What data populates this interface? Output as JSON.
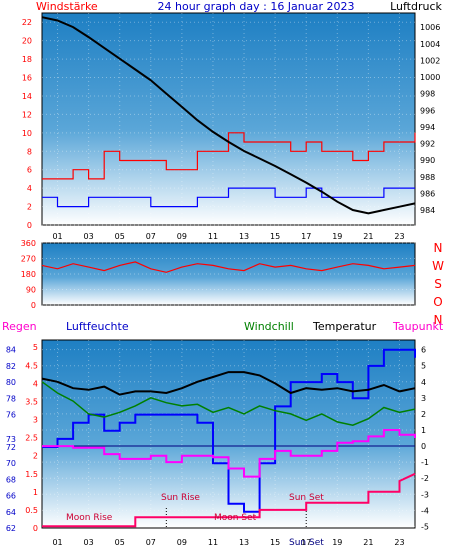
{
  "header": {
    "left": "Windstärke",
    "title": "24 hour graph day : 16 Januar 2023",
    "right": "Luftdruck"
  },
  "colors": {
    "wind_gust": "#ff0000",
    "wind_avg": "#0000ff",
    "pressure": "#000000",
    "direction": "#ff0000",
    "humidity": "#0000ff",
    "windchill": "#008000",
    "temperature": "#000000",
    "dewpoint": "#ff00ff",
    "rain": "#ff0066",
    "plot_top": "#1e7fc3",
    "plot_bottom": "#ffffff"
  },
  "x_ticks": [
    "01",
    "03",
    "05",
    "07",
    "09",
    "11",
    "13",
    "15",
    "17",
    "19",
    "21",
    "23"
  ],
  "direction_letters": [
    "N",
    "W",
    "S",
    "O",
    "N"
  ],
  "bottom_header": {
    "regen": "Regen",
    "luftfeuchte": "Luftfeuchte",
    "windchill": "Windchill",
    "temperatur": "Temperatur",
    "taupunkt": "Taupunkt"
  },
  "annotations": {
    "moon_rise": "Moon Rise",
    "sun_rise": "Sun Rise",
    "moon_set": "Moon Set",
    "sun_set": "Sun Set",
    "sun_set_axis": "Sun Set"
  },
  "chart_data": [
    {
      "type": "line",
      "x_range": [
        0,
        24
      ],
      "y_left": {
        "label": "Windstärke",
        "ticks": [
          0,
          2,
          4,
          6,
          8,
          10,
          12,
          14,
          16,
          18,
          20,
          22
        ],
        "range": [
          0,
          23
        ]
      },
      "y_right": {
        "label": "Luftdruck",
        "ticks": [
          984,
          986,
          988,
          990,
          992,
          994,
          996,
          998,
          1000,
          1002,
          1004,
          1006
        ],
        "range": [
          982.2,
          1007.7
        ]
      },
      "series": [
        {
          "key": "gust",
          "axis": "left",
          "points": [
            [
              0,
              5
            ],
            [
              1,
              5
            ],
            [
              2,
              6
            ],
            [
              3,
              5
            ],
            [
              4,
              8
            ],
            [
              5,
              7
            ],
            [
              6,
              7
            ],
            [
              7,
              7
            ],
            [
              8,
              6
            ],
            [
              9,
              6
            ],
            [
              10,
              8
            ],
            [
              11,
              8
            ],
            [
              12,
              10
            ],
            [
              13,
              9
            ],
            [
              14,
              9
            ],
            [
              15,
              9
            ],
            [
              16,
              8
            ],
            [
              17,
              9
            ],
            [
              18,
              8
            ],
            [
              19,
              8
            ],
            [
              20,
              7
            ],
            [
              21,
              8
            ],
            [
              22,
              9
            ],
            [
              23,
              9
            ],
            [
              24,
              10
            ]
          ]
        },
        {
          "key": "average",
          "axis": "left",
          "points": [
            [
              0,
              3
            ],
            [
              1,
              2
            ],
            [
              2,
              2
            ],
            [
              3,
              3
            ],
            [
              4,
              3
            ],
            [
              5,
              3
            ],
            [
              6,
              3
            ],
            [
              7,
              2
            ],
            [
              8,
              2
            ],
            [
              9,
              2
            ],
            [
              10,
              3
            ],
            [
              11,
              3
            ],
            [
              12,
              4
            ],
            [
              13,
              4
            ],
            [
              14,
              4
            ],
            [
              15,
              3
            ],
            [
              16,
              3
            ],
            [
              17,
              4
            ],
            [
              18,
              3
            ],
            [
              19,
              3
            ],
            [
              20,
              3
            ],
            [
              21,
              3
            ],
            [
              22,
              4
            ],
            [
              23,
              4
            ],
            [
              24,
              4
            ]
          ]
        },
        {
          "key": "pressure",
          "axis": "right",
          "points": [
            [
              0,
              1007.2
            ],
            [
              1,
              1006.8
            ],
            [
              2,
              1006.0
            ],
            [
              3,
              1004.8
            ],
            [
              4,
              1003.5
            ],
            [
              5,
              1002.2
            ],
            [
              6,
              1000.9
            ],
            [
              7,
              999.6
            ],
            [
              8,
              998.0
            ],
            [
              9,
              996.4
            ],
            [
              10,
              994.8
            ],
            [
              11,
              993.4
            ],
            [
              12,
              992.2
            ],
            [
              13,
              991.1
            ],
            [
              14,
              990.2
            ],
            [
              15,
              989.3
            ],
            [
              16,
              988.3
            ],
            [
              17,
              987.3
            ],
            [
              18,
              986.2
            ],
            [
              19,
              985.0
            ],
            [
              20,
              984.0
            ],
            [
              21,
              983.6
            ],
            [
              22,
              984.0
            ],
            [
              23,
              984.4
            ],
            [
              24,
              984.8
            ]
          ]
        }
      ]
    },
    {
      "type": "line",
      "x_range": [
        0,
        24
      ],
      "y_left": {
        "ticks": [
          0,
          90,
          180,
          270,
          360
        ],
        "range": [
          0,
          360
        ]
      },
      "series": [
        {
          "key": "direction",
          "axis": "left",
          "points": [
            [
              0,
              230
            ],
            [
              1,
              210
            ],
            [
              2,
              240
            ],
            [
              3,
              220
            ],
            [
              4,
              200
            ],
            [
              5,
              230
            ],
            [
              6,
              250
            ],
            [
              7,
              210
            ],
            [
              8,
              190
            ],
            [
              9,
              220
            ],
            [
              10,
              240
            ],
            [
              11,
              230
            ],
            [
              12,
              210
            ],
            [
              13,
              200
            ],
            [
              14,
              240
            ],
            [
              15,
              220
            ],
            [
              16,
              230
            ],
            [
              17,
              210
            ],
            [
              18,
              200
            ],
            [
              19,
              220
            ],
            [
              20,
              240
            ],
            [
              21,
              230
            ],
            [
              22,
              210
            ],
            [
              23,
              220
            ],
            [
              24,
              230
            ]
          ]
        }
      ]
    },
    {
      "type": "line",
      "x_range": [
        0,
        24
      ],
      "y_left_outer": {
        "label": "Regen",
        "ticks": [
          0,
          0.5,
          1,
          1.5,
          2,
          2.5,
          3,
          3.5,
          4,
          4.5,
          5
        ],
        "range": [
          0,
          5.2
        ]
      },
      "y_left_inner": {
        "label": "Luftfeuchte",
        "ticks": [
          62,
          64,
          66,
          68,
          70,
          72,
          73,
          76,
          78,
          80,
          82,
          84
        ],
        "range": [
          62,
          85.2
        ]
      },
      "y_right": {
        "label": "Temperatur",
        "ticks": [
          -5,
          -4,
          -3,
          -2,
          -1,
          0,
          1,
          2,
          3,
          4,
          5,
          6
        ],
        "range": [
          -5.1,
          6.6
        ]
      },
      "series": [
        {
          "key": "humidity",
          "axis": "left_inner",
          "points": [
            [
              0,
              72
            ],
            [
              1,
              73
            ],
            [
              2,
              75
            ],
            [
              3,
              76
            ],
            [
              4,
              74
            ],
            [
              5,
              75
            ],
            [
              6,
              76
            ],
            [
              7,
              76
            ],
            [
              8,
              76
            ],
            [
              9,
              76
            ],
            [
              10,
              75
            ],
            [
              11,
              70
            ],
            [
              12,
              65
            ],
            [
              13,
              64
            ],
            [
              14,
              70
            ],
            [
              15,
              77
            ],
            [
              16,
              80
            ],
            [
              17,
              80
            ],
            [
              18,
              81
            ],
            [
              19,
              80
            ],
            [
              20,
              78
            ],
            [
              21,
              82
            ],
            [
              22,
              84
            ],
            [
              23,
              84
            ],
            [
              24,
              83
            ]
          ]
        },
        {
          "key": "windchill",
          "axis": "right",
          "points": [
            [
              0,
              4.0
            ],
            [
              1,
              3.3
            ],
            [
              2,
              2.8
            ],
            [
              3,
              2.0
            ],
            [
              4,
              1.8
            ],
            [
              5,
              2.1
            ],
            [
              6,
              2.5
            ],
            [
              7,
              3.0
            ],
            [
              8,
              2.7
            ],
            [
              9,
              2.5
            ],
            [
              10,
              2.6
            ],
            [
              11,
              2.1
            ],
            [
              12,
              2.4
            ],
            [
              13,
              2.0
            ],
            [
              14,
              2.5
            ],
            [
              15,
              2.2
            ],
            [
              16,
              2.0
            ],
            [
              17,
              1.6
            ],
            [
              18,
              2.0
            ],
            [
              19,
              1.5
            ],
            [
              20,
              1.3
            ],
            [
              21,
              1.7
            ],
            [
              22,
              2.4
            ],
            [
              23,
              2.1
            ],
            [
              24,
              2.3
            ]
          ]
        },
        {
          "key": "temperature",
          "axis": "right",
          "points": [
            [
              0,
              4.2
            ],
            [
              1,
              4.0
            ],
            [
              2,
              3.6
            ],
            [
              3,
              3.5
            ],
            [
              4,
              3.7
            ],
            [
              5,
              3.2
            ],
            [
              6,
              3.4
            ],
            [
              7,
              3.4
            ],
            [
              8,
              3.3
            ],
            [
              9,
              3.6
            ],
            [
              10,
              4.0
            ],
            [
              11,
              4.3
            ],
            [
              12,
              4.6
            ],
            [
              13,
              4.6
            ],
            [
              14,
              4.4
            ],
            [
              15,
              3.9
            ],
            [
              16,
              3.3
            ],
            [
              17,
              3.6
            ],
            [
              18,
              3.5
            ],
            [
              19,
              3.6
            ],
            [
              20,
              3.4
            ],
            [
              21,
              3.5
            ],
            [
              22,
              3.8
            ],
            [
              23,
              3.4
            ],
            [
              24,
              3.6
            ]
          ]
        },
        {
          "key": "dewpoint",
          "axis": "right",
          "points": [
            [
              0,
              0.0
            ],
            [
              1,
              0.0
            ],
            [
              2,
              -0.1
            ],
            [
              3,
              -0.1
            ],
            [
              4,
              -0.5
            ],
            [
              5,
              -0.8
            ],
            [
              6,
              -0.8
            ],
            [
              7,
              -0.6
            ],
            [
              8,
              -1.0
            ],
            [
              9,
              -0.6
            ],
            [
              10,
              -0.6
            ],
            [
              11,
              -0.7
            ],
            [
              12,
              -1.4
            ],
            [
              13,
              -1.9
            ],
            [
              14,
              -0.8
            ],
            [
              15,
              -0.3
            ],
            [
              16,
              -0.6
            ],
            [
              17,
              -0.6
            ],
            [
              18,
              -0.3
            ],
            [
              19,
              0.2
            ],
            [
              20,
              0.3
            ],
            [
              21,
              0.6
            ],
            [
              22,
              1.0
            ],
            [
              23,
              0.7
            ],
            [
              24,
              0.5
            ]
          ]
        },
        {
          "key": "rain",
          "axis": "left_outer",
          "points": [
            [
              0,
              0.05
            ],
            [
              6,
              0.05
            ],
            [
              6,
              0.3
            ],
            [
              14,
              0.3
            ],
            [
              14,
              0.5
            ],
            [
              17,
              0.5
            ],
            [
              17,
              0.7
            ],
            [
              21,
              0.7
            ],
            [
              21,
              1.0
            ],
            [
              23,
              1.0
            ],
            [
              23,
              1.3
            ],
            [
              24,
              1.5
            ]
          ]
        }
      ]
    }
  ]
}
